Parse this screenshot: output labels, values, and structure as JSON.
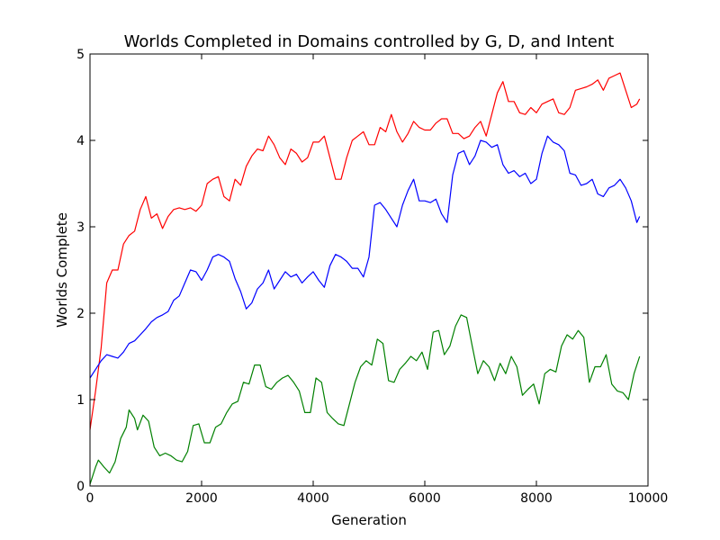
{
  "chart_data": {
    "type": "line",
    "title": "Worlds Completed in Domains controlled by G, D, and Intent",
    "xlabel": "Generation",
    "ylabel": "Worlds Complete",
    "xlim": [
      0,
      10000
    ],
    "ylim": [
      0,
      5
    ],
    "xticks": [
      0,
      2000,
      4000,
      6000,
      8000,
      10000
    ],
    "xtick_labels": [
      "0",
      "2000",
      "4000",
      "6000",
      "8000",
      "10000"
    ],
    "yticks": [
      0,
      1,
      2,
      3,
      4,
      5
    ],
    "ytick_labels": [
      "0",
      "1",
      "2",
      "3",
      "4",
      "5"
    ],
    "grid": false,
    "series": [
      {
        "color": "#ff0000",
        "points": [
          [
            0,
            0.65
          ],
          [
            100,
            1.1
          ],
          [
            200,
            1.6
          ],
          [
            300,
            2.35
          ],
          [
            400,
            2.5
          ],
          [
            500,
            2.5
          ],
          [
            600,
            2.8
          ],
          [
            700,
            2.9
          ],
          [
            800,
            2.95
          ],
          [
            900,
            3.2
          ],
          [
            1000,
            3.35
          ],
          [
            1100,
            3.1
          ],
          [
            1200,
            3.15
          ],
          [
            1300,
            2.98
          ],
          [
            1400,
            3.12
          ],
          [
            1500,
            3.2
          ],
          [
            1600,
            3.22
          ],
          [
            1700,
            3.2
          ],
          [
            1800,
            3.22
          ],
          [
            1900,
            3.18
          ],
          [
            2000,
            3.25
          ],
          [
            2100,
            3.5
          ],
          [
            2200,
            3.55
          ],
          [
            2300,
            3.58
          ],
          [
            2400,
            3.35
          ],
          [
            2500,
            3.3
          ],
          [
            2600,
            3.55
          ],
          [
            2700,
            3.48
          ],
          [
            2800,
            3.7
          ],
          [
            2900,
            3.82
          ],
          [
            3000,
            3.9
          ],
          [
            3100,
            3.88
          ],
          [
            3200,
            4.05
          ],
          [
            3300,
            3.95
          ],
          [
            3400,
            3.8
          ],
          [
            3500,
            3.72
          ],
          [
            3600,
            3.9
          ],
          [
            3700,
            3.85
          ],
          [
            3800,
            3.75
          ],
          [
            3900,
            3.8
          ],
          [
            4000,
            3.98
          ],
          [
            4100,
            3.98
          ],
          [
            4200,
            4.05
          ],
          [
            4300,
            3.8
          ],
          [
            4400,
            3.55
          ],
          [
            4500,
            3.55
          ],
          [
            4600,
            3.8
          ],
          [
            4700,
            4.0
          ],
          [
            4800,
            4.05
          ],
          [
            4900,
            4.1
          ],
          [
            5000,
            3.95
          ],
          [
            5100,
            3.95
          ],
          [
            5200,
            4.15
          ],
          [
            5300,
            4.1
          ],
          [
            5400,
            4.3
          ],
          [
            5500,
            4.1
          ],
          [
            5600,
            3.98
          ],
          [
            5700,
            4.08
          ],
          [
            5800,
            4.22
          ],
          [
            5900,
            4.15
          ],
          [
            6000,
            4.12
          ],
          [
            6100,
            4.12
          ],
          [
            6200,
            4.2
          ],
          [
            6300,
            4.25
          ],
          [
            6400,
            4.25
          ],
          [
            6500,
            4.08
          ],
          [
            6600,
            4.08
          ],
          [
            6700,
            4.02
          ],
          [
            6800,
            4.05
          ],
          [
            6900,
            4.15
          ],
          [
            7000,
            4.22
          ],
          [
            7100,
            4.05
          ],
          [
            7200,
            4.3
          ],
          [
            7300,
            4.55
          ],
          [
            7400,
            4.68
          ],
          [
            7500,
            4.45
          ],
          [
            7600,
            4.45
          ],
          [
            7700,
            4.32
          ],
          [
            7800,
            4.3
          ],
          [
            7900,
            4.38
          ],
          [
            8000,
            4.32
          ],
          [
            8100,
            4.42
          ],
          [
            8200,
            4.45
          ],
          [
            8300,
            4.48
          ],
          [
            8400,
            4.32
          ],
          [
            8500,
            4.3
          ],
          [
            8600,
            4.38
          ],
          [
            8700,
            4.58
          ],
          [
            8800,
            4.6
          ],
          [
            8900,
            4.62
          ],
          [
            9000,
            4.65
          ],
          [
            9100,
            4.7
          ],
          [
            9200,
            4.58
          ],
          [
            9300,
            4.72
          ],
          [
            9400,
            4.75
          ],
          [
            9500,
            4.78
          ],
          [
            9600,
            4.58
          ],
          [
            9700,
            4.38
          ],
          [
            9800,
            4.42
          ],
          [
            9850,
            4.48
          ]
        ]
      },
      {
        "color": "#0000ff",
        "points": [
          [
            0,
            1.25
          ],
          [
            100,
            1.35
          ],
          [
            200,
            1.45
          ],
          [
            300,
            1.52
          ],
          [
            400,
            1.5
          ],
          [
            500,
            1.48
          ],
          [
            600,
            1.55
          ],
          [
            700,
            1.65
          ],
          [
            800,
            1.68
          ],
          [
            900,
            1.75
          ],
          [
            1000,
            1.82
          ],
          [
            1100,
            1.9
          ],
          [
            1200,
            1.95
          ],
          [
            1300,
            1.98
          ],
          [
            1400,
            2.02
          ],
          [
            1500,
            2.15
          ],
          [
            1600,
            2.2
          ],
          [
            1700,
            2.35
          ],
          [
            1800,
            2.5
          ],
          [
            1900,
            2.48
          ],
          [
            2000,
            2.38
          ],
          [
            2100,
            2.5
          ],
          [
            2200,
            2.65
          ],
          [
            2300,
            2.68
          ],
          [
            2400,
            2.65
          ],
          [
            2500,
            2.6
          ],
          [
            2600,
            2.4
          ],
          [
            2700,
            2.25
          ],
          [
            2800,
            2.05
          ],
          [
            2900,
            2.12
          ],
          [
            3000,
            2.28
          ],
          [
            3100,
            2.35
          ],
          [
            3200,
            2.5
          ],
          [
            3300,
            2.28
          ],
          [
            3400,
            2.38
          ],
          [
            3500,
            2.48
          ],
          [
            3600,
            2.42
          ],
          [
            3700,
            2.45
          ],
          [
            3800,
            2.35
          ],
          [
            3900,
            2.42
          ],
          [
            4000,
            2.48
          ],
          [
            4100,
            2.38
          ],
          [
            4200,
            2.3
          ],
          [
            4300,
            2.55
          ],
          [
            4400,
            2.68
          ],
          [
            4500,
            2.65
          ],
          [
            4600,
            2.6
          ],
          [
            4700,
            2.52
          ],
          [
            4800,
            2.52
          ],
          [
            4900,
            2.42
          ],
          [
            5000,
            2.65
          ],
          [
            5100,
            3.25
          ],
          [
            5200,
            3.28
          ],
          [
            5300,
            3.2
          ],
          [
            5400,
            3.1
          ],
          [
            5500,
            3.0
          ],
          [
            5600,
            3.25
          ],
          [
            5700,
            3.42
          ],
          [
            5800,
            3.55
          ],
          [
            5900,
            3.3
          ],
          [
            6000,
            3.3
          ],
          [
            6100,
            3.28
          ],
          [
            6200,
            3.32
          ],
          [
            6300,
            3.15
          ],
          [
            6400,
            3.05
          ],
          [
            6500,
            3.6
          ],
          [
            6600,
            3.85
          ],
          [
            6700,
            3.88
          ],
          [
            6800,
            3.72
          ],
          [
            6900,
            3.82
          ],
          [
            7000,
            4.0
          ],
          [
            7100,
            3.98
          ],
          [
            7200,
            3.92
          ],
          [
            7300,
            3.95
          ],
          [
            7400,
            3.72
          ],
          [
            7500,
            3.62
          ],
          [
            7600,
            3.65
          ],
          [
            7700,
            3.58
          ],
          [
            7800,
            3.62
          ],
          [
            7900,
            3.5
          ],
          [
            8000,
            3.55
          ],
          [
            8100,
            3.85
          ],
          [
            8200,
            4.05
          ],
          [
            8300,
            3.98
          ],
          [
            8400,
            3.95
          ],
          [
            8500,
            3.88
          ],
          [
            8600,
            3.62
          ],
          [
            8700,
            3.6
          ],
          [
            8800,
            3.48
          ],
          [
            8900,
            3.5
          ],
          [
            9000,
            3.55
          ],
          [
            9100,
            3.38
          ],
          [
            9200,
            3.35
          ],
          [
            9300,
            3.45
          ],
          [
            9400,
            3.48
          ],
          [
            9500,
            3.55
          ],
          [
            9600,
            3.45
          ],
          [
            9700,
            3.3
          ],
          [
            9800,
            3.05
          ],
          [
            9850,
            3.12
          ]
        ]
      },
      {
        "color": "#008000",
        "points": [
          [
            0,
            0.02
          ],
          [
            100,
            0.22
          ],
          [
            150,
            0.3
          ],
          [
            250,
            0.22
          ],
          [
            350,
            0.15
          ],
          [
            450,
            0.28
          ],
          [
            550,
            0.55
          ],
          [
            650,
            0.68
          ],
          [
            700,
            0.88
          ],
          [
            800,
            0.78
          ],
          [
            850,
            0.65
          ],
          [
            950,
            0.82
          ],
          [
            1050,
            0.75
          ],
          [
            1150,
            0.45
          ],
          [
            1250,
            0.35
          ],
          [
            1350,
            0.38
          ],
          [
            1450,
            0.35
          ],
          [
            1550,
            0.3
          ],
          [
            1650,
            0.28
          ],
          [
            1750,
            0.4
          ],
          [
            1850,
            0.7
          ],
          [
            1950,
            0.72
          ],
          [
            2050,
            0.5
          ],
          [
            2150,
            0.5
          ],
          [
            2250,
            0.68
          ],
          [
            2350,
            0.72
          ],
          [
            2450,
            0.85
          ],
          [
            2550,
            0.95
          ],
          [
            2650,
            0.98
          ],
          [
            2750,
            1.2
          ],
          [
            2850,
            1.18
          ],
          [
            2950,
            1.4
          ],
          [
            3050,
            1.4
          ],
          [
            3150,
            1.15
          ],
          [
            3250,
            1.12
          ],
          [
            3350,
            1.2
          ],
          [
            3450,
            1.25
          ],
          [
            3550,
            1.28
          ],
          [
            3650,
            1.2
          ],
          [
            3750,
            1.1
          ],
          [
            3850,
            0.85
          ],
          [
            3950,
            0.85
          ],
          [
            4050,
            1.25
          ],
          [
            4150,
            1.2
          ],
          [
            4250,
            0.85
          ],
          [
            4350,
            0.78
          ],
          [
            4450,
            0.72
          ],
          [
            4550,
            0.7
          ],
          [
            4650,
            0.95
          ],
          [
            4750,
            1.2
          ],
          [
            4850,
            1.38
          ],
          [
            4950,
            1.45
          ],
          [
            5050,
            1.4
          ],
          [
            5150,
            1.7
          ],
          [
            5250,
            1.65
          ],
          [
            5350,
            1.22
          ],
          [
            5450,
            1.2
          ],
          [
            5550,
            1.35
          ],
          [
            5650,
            1.42
          ],
          [
            5750,
            1.5
          ],
          [
            5850,
            1.45
          ],
          [
            5950,
            1.55
          ],
          [
            6050,
            1.35
          ],
          [
            6150,
            1.78
          ],
          [
            6250,
            1.8
          ],
          [
            6350,
            1.52
          ],
          [
            6450,
            1.62
          ],
          [
            6550,
            1.85
          ],
          [
            6650,
            1.98
          ],
          [
            6750,
            1.95
          ],
          [
            6850,
            1.62
          ],
          [
            6950,
            1.3
          ],
          [
            7050,
            1.45
          ],
          [
            7150,
            1.38
          ],
          [
            7250,
            1.22
          ],
          [
            7350,
            1.42
          ],
          [
            7450,
            1.3
          ],
          [
            7550,
            1.5
          ],
          [
            7650,
            1.38
          ],
          [
            7750,
            1.05
          ],
          [
            7850,
            1.12
          ],
          [
            7950,
            1.18
          ],
          [
            8050,
            0.95
          ],
          [
            8150,
            1.3
          ],
          [
            8250,
            1.35
          ],
          [
            8350,
            1.32
          ],
          [
            8450,
            1.62
          ],
          [
            8550,
            1.75
          ],
          [
            8650,
            1.7
          ],
          [
            8750,
            1.8
          ],
          [
            8850,
            1.72
          ],
          [
            8950,
            1.2
          ],
          [
            9050,
            1.38
          ],
          [
            9150,
            1.38
          ],
          [
            9250,
            1.52
          ],
          [
            9350,
            1.18
          ],
          [
            9450,
            1.1
          ],
          [
            9550,
            1.08
          ],
          [
            9650,
            1.0
          ],
          [
            9750,
            1.3
          ],
          [
            9850,
            1.5
          ]
        ]
      }
    ]
  }
}
